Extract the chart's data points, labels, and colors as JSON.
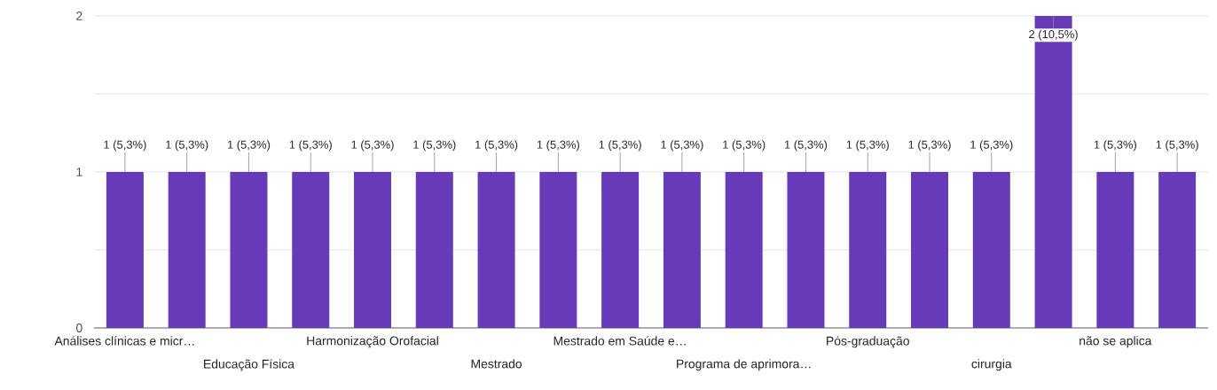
{
  "chart_data": {
    "type": "bar",
    "color": "#673ab7",
    "categories": [
      "Análises clínicas e micr…",
      null,
      "Educação Física",
      null,
      "Harmonização Orofacial",
      null,
      "Mestrado",
      null,
      "Mestrado em Saúde e…",
      null,
      "Programa de aprimora…",
      null,
      "Pós-graduação",
      null,
      "cirurgia",
      null,
      "não se aplica",
      null
    ],
    "values": [
      1,
      1,
      1,
      1,
      1,
      1,
      1,
      1,
      1,
      1,
      1,
      1,
      1,
      1,
      1,
      2,
      1,
      1
    ],
    "value_labels": [
      "1 (5,3%)",
      "1 (5,3%)",
      "1 (5,3%)",
      "1 (5,3%)",
      "1 (5,3%)",
      "1 (5,3%)",
      "1 (5,3%)",
      "1 (5,3%)",
      "1 (5,3%)",
      "1 (5,3%)",
      "1 (5,3%)",
      "1 (5,3%)",
      "1 (5,3%)",
      "1 (5,3%)",
      "1 (5,3%)",
      "2 (10,5%)",
      "1 (5,3%)",
      "1 (5,3%)"
    ],
    "ylim": [
      0,
      2
    ],
    "yticks": [
      0,
      {
        "value": 0.5,
        "label": null
      },
      1,
      {
        "value": 1.5,
        "label": null
      },
      2
    ],
    "grid": "y"
  }
}
